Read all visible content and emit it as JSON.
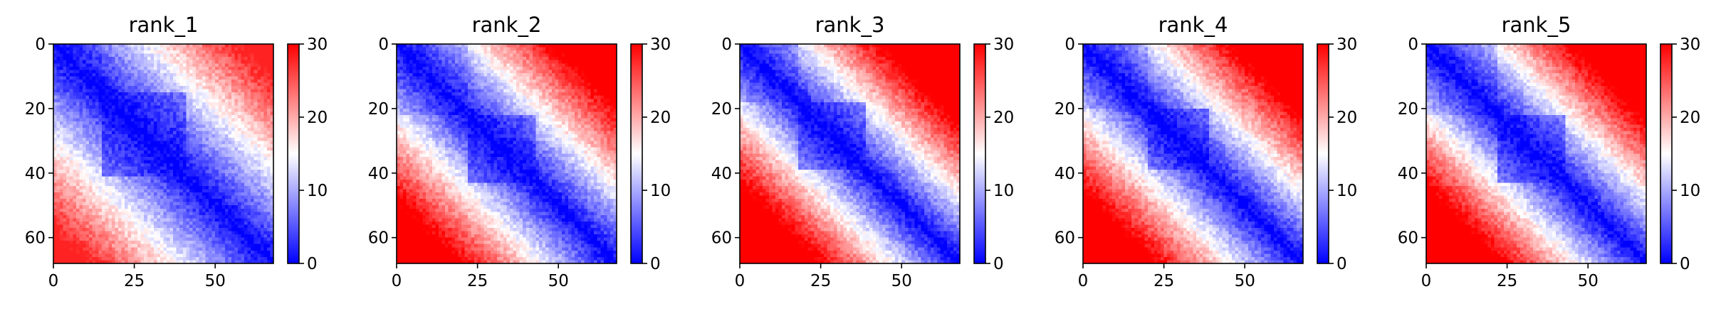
{
  "chart_data": [
    {
      "type": "heatmap",
      "title": "rank_1",
      "matrix_size": 68,
      "x_ticks": [
        0,
        25,
        50
      ],
      "y_ticks": [
        0,
        20,
        40,
        60
      ],
      "colorbar": {
        "cmap": "bwr",
        "range": [
          0,
          30
        ],
        "ticks": [
          0,
          10,
          20,
          30
        ],
        "colors": {
          "low": "#0000ff",
          "mid": "#ffffff",
          "high": "#ff0000"
        }
      },
      "pattern": {
        "scale": 0.5,
        "tad_bounds": [
          15,
          40
        ],
        "corner_max": 28
      }
    },
    {
      "type": "heatmap",
      "title": "rank_2",
      "matrix_size": 68,
      "x_ticks": [
        0,
        25,
        50
      ],
      "y_ticks": [
        0,
        20,
        40,
        60
      ],
      "colorbar": {
        "cmap": "bwr",
        "range": [
          0,
          30
        ],
        "ticks": [
          0,
          10,
          20,
          30
        ],
        "colors": {
          "low": "#0000ff",
          "mid": "#ffffff",
          "high": "#ff0000"
        }
      },
      "pattern": {
        "scale": 0.64,
        "tad_bounds": [
          22,
          42
        ],
        "corner_max": 30
      }
    },
    {
      "type": "heatmap",
      "title": "rank_3",
      "matrix_size": 68,
      "x_ticks": [
        0,
        25,
        50
      ],
      "y_ticks": [
        0,
        20,
        40,
        60
      ],
      "colorbar": {
        "cmap": "bwr",
        "range": [
          0,
          30
        ],
        "ticks": [
          0,
          10,
          20,
          30
        ],
        "colors": {
          "low": "#0000ff",
          "mid": "#ffffff",
          "high": "#ff0000"
        }
      },
      "pattern": {
        "scale": 0.72,
        "tad_bounds": [
          18,
          38
        ],
        "corner_max": 30
      }
    },
    {
      "type": "heatmap",
      "title": "rank_4",
      "matrix_size": 68,
      "x_ticks": [
        0,
        25,
        50
      ],
      "y_ticks": [
        0,
        20,
        40,
        60
      ],
      "colorbar": {
        "cmap": "bwr",
        "range": [
          0,
          30
        ],
        "ticks": [
          0,
          10,
          20,
          30
        ],
        "colors": {
          "low": "#0000ff",
          "mid": "#ffffff",
          "high": "#ff0000"
        }
      },
      "pattern": {
        "scale": 0.68,
        "tad_bounds": [
          20,
          38
        ],
        "corner_max": 30
      }
    },
    {
      "type": "heatmap",
      "title": "rank_5",
      "matrix_size": 68,
      "x_ticks": [
        0,
        25,
        50
      ],
      "y_ticks": [
        0,
        20,
        40,
        60
      ],
      "colorbar": {
        "cmap": "bwr",
        "range": [
          0,
          30
        ],
        "ticks": [
          0,
          10,
          20,
          30
        ],
        "colors": {
          "low": "#0000ff",
          "mid": "#ffffff",
          "high": "#ff0000"
        }
      },
      "pattern": {
        "scale": 0.7,
        "tad_bounds": [
          22,
          42
        ],
        "corner_max": 30
      }
    }
  ]
}
